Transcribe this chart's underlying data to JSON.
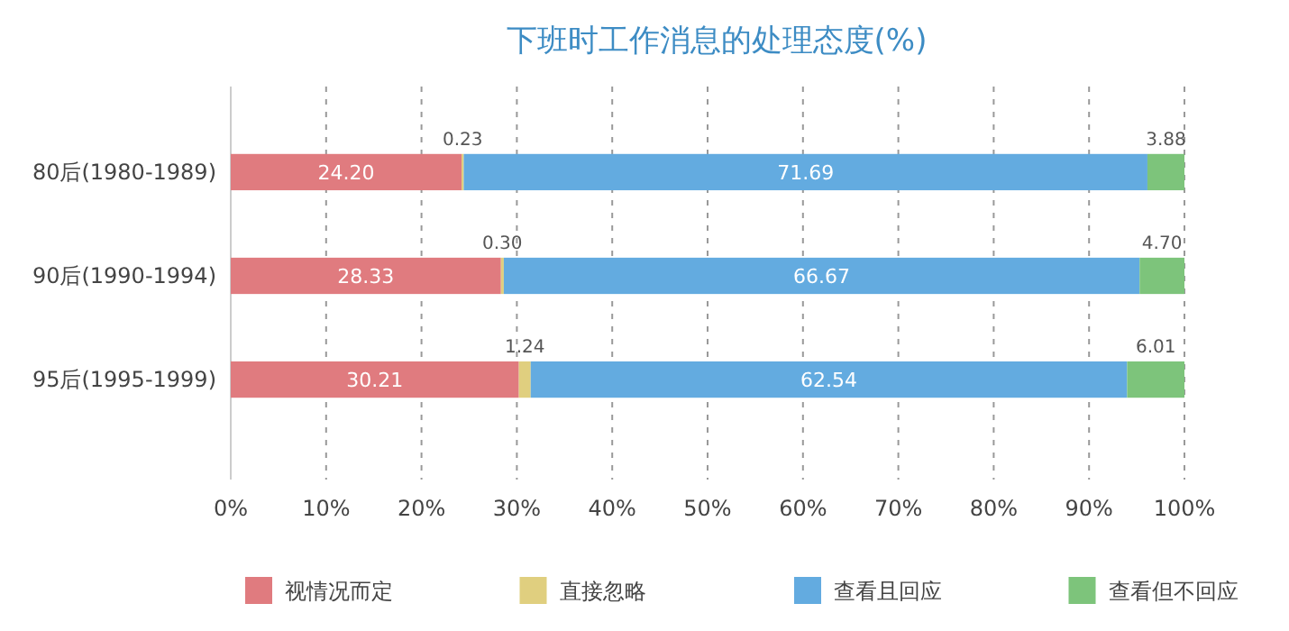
{
  "chart_data": {
    "type": "bar",
    "orientation": "horizontal",
    "stacked": true,
    "title": "下班时工作消息的处理态度(%)",
    "categories": [
      "80后(1980-1989)",
      "90后(1990-1994)",
      "95后(1995-1999)"
    ],
    "series": [
      {
        "name": "视情况而定",
        "color": "#e07b7f",
        "values": [
          24.2,
          28.33,
          30.21
        ],
        "value_labels": [
          "24.20",
          "28.33",
          "30.21"
        ]
      },
      {
        "name": "直接忽略",
        "color": "#e0cf7f",
        "values": [
          0.23,
          0.3,
          1.24
        ],
        "value_labels": [
          "0.23",
          "0.30",
          "1.24"
        ]
      },
      {
        "name": "查看且回应",
        "color": "#63abe0",
        "values": [
          71.69,
          66.67,
          62.54
        ],
        "value_labels": [
          "71.69",
          "66.67",
          "62.54"
        ]
      },
      {
        "name": "查看但不回应",
        "color": "#7dc47b",
        "values": [
          3.88,
          4.7,
          6.01
        ],
        "value_labels": [
          "3.88",
          "4.70",
          "6.01"
        ]
      }
    ],
    "xlim": [
      0,
      100
    ],
    "xticks": [
      {
        "value": 0,
        "label": "0%"
      },
      {
        "value": 10,
        "label": "10%"
      },
      {
        "value": 20,
        "label": "20%"
      },
      {
        "value": 30,
        "label": "30%"
      },
      {
        "value": 40,
        "label": "40%"
      },
      {
        "value": 50,
        "label": "50%"
      },
      {
        "value": 60,
        "label": "60%"
      },
      {
        "value": 70,
        "label": "70%"
      },
      {
        "value": 80,
        "label": "80%"
      },
      {
        "value": 90,
        "label": "90%"
      },
      {
        "value": 100,
        "label": "100%"
      }
    ],
    "grid": "x",
    "legend": "bottom"
  }
}
